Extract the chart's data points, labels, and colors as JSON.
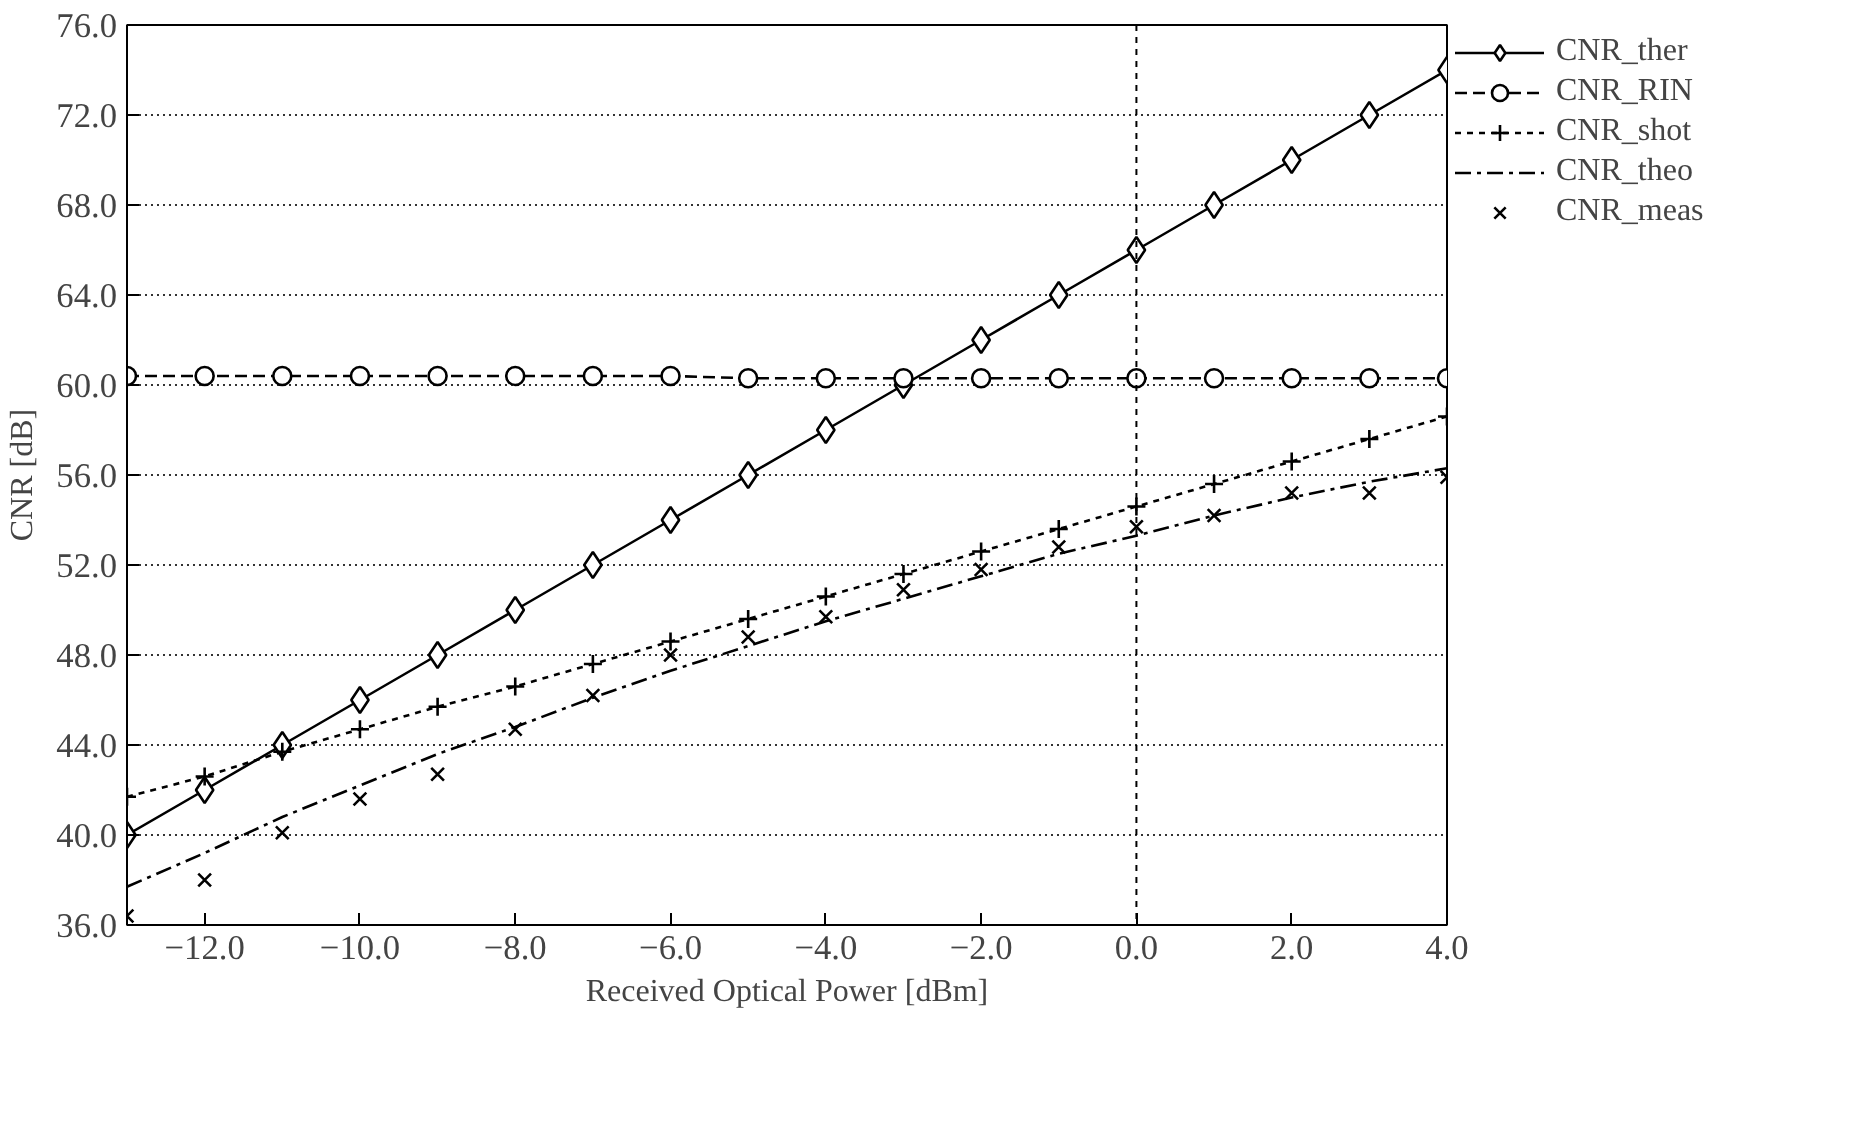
{
  "chart_data": {
    "type": "line",
    "xlabel": "Received Optical Power [dBm]",
    "ylabel": "CNR [dB]",
    "x": [
      -13,
      -12,
      -11,
      -10,
      -9,
      -8,
      -7,
      -6,
      -5,
      -4,
      -3,
      -2,
      -1,
      0,
      1,
      2,
      3,
      4
    ],
    "series": [
      {
        "name": "CNR_ther",
        "color": "#000000",
        "marker": "diamond",
        "line_style": "solid",
        "values": [
          40,
          42,
          44,
          46,
          48,
          50,
          52,
          54,
          56,
          58,
          60,
          62,
          64,
          66,
          68,
          70,
          72,
          74
        ]
      },
      {
        "name": "CNR_RIN",
        "color": "#000000",
        "marker": "circle",
        "line_style": "dashed",
        "values": [
          60.4,
          60.4,
          60.4,
          60.4,
          60.4,
          60.4,
          60.4,
          60.4,
          60.3,
          60.3,
          60.3,
          60.3,
          60.3,
          60.3,
          60.3,
          60.3,
          60.3,
          60.3
        ]
      },
      {
        "name": "CNR_shot",
        "color": "#000000",
        "marker": "cross",
        "line_style": "dotted",
        "values": [
          41.7,
          42.6,
          43.7,
          44.7,
          45.7,
          46.6,
          47.6,
          48.6,
          49.6,
          50.6,
          51.6,
          52.6,
          53.6,
          54.6,
          55.6,
          56.6,
          57.6,
          58.6
        ]
      },
      {
        "name": "CNR_theo",
        "color": "#000000",
        "marker": "none",
        "line_style": "dashdot",
        "values": [
          37.7,
          39.2,
          40.8,
          42.2,
          43.6,
          44.8,
          46.1,
          47.3,
          48.4,
          49.5,
          50.5,
          51.5,
          52.5,
          53.3,
          54.2,
          55.0,
          55.7,
          56.3
        ]
      },
      {
        "name": "CNR_meas",
        "type": "scatter",
        "color": "#000000",
        "marker": "x",
        "values": [
          36.4,
          38.0,
          40.1,
          41.6,
          42.7,
          44.7,
          46.2,
          48.0,
          48.8,
          49.7,
          50.9,
          51.8,
          52.8,
          53.7,
          54.2,
          55.2,
          55.2,
          55.9
        ]
      }
    ],
    "xlim": [
      -13,
      4
    ],
    "ylim": [
      36,
      76
    ],
    "xticks": [
      {
        "value": -12,
        "label": "−12.0"
      },
      {
        "value": -10,
        "label": "−10.0"
      },
      {
        "value": -8,
        "label": "−8.0"
      },
      {
        "value": -6,
        "label": "−6.0"
      },
      {
        "value": -4,
        "label": "−4.0"
      },
      {
        "value": -2,
        "label": "−2.0"
      },
      {
        "value": 0,
        "label": "0.0"
      },
      {
        "value": 2,
        "label": "2.0"
      },
      {
        "value": 4,
        "label": "4.0"
      }
    ],
    "yticks": [
      {
        "value": 36,
        "label": "36.0"
      },
      {
        "value": 40,
        "label": "40.0"
      },
      {
        "value": 44,
        "label": "44.0"
      },
      {
        "value": 48,
        "label": "48.0"
      },
      {
        "value": 52,
        "label": "52.0"
      },
      {
        "value": 56,
        "label": "56.0"
      },
      {
        "value": 60,
        "label": "60.0"
      },
      {
        "value": 64,
        "label": "64.0"
      },
      {
        "value": 68,
        "label": "68.0"
      },
      {
        "value": 72,
        "label": "72.0"
      },
      {
        "value": 76,
        "label": "76.0"
      }
    ],
    "grid": "y",
    "legend": "top right",
    "ref_lines": [
      {
        "axis": "x",
        "value": 0,
        "label": null,
        "line_style": "dotted"
      }
    ]
  }
}
